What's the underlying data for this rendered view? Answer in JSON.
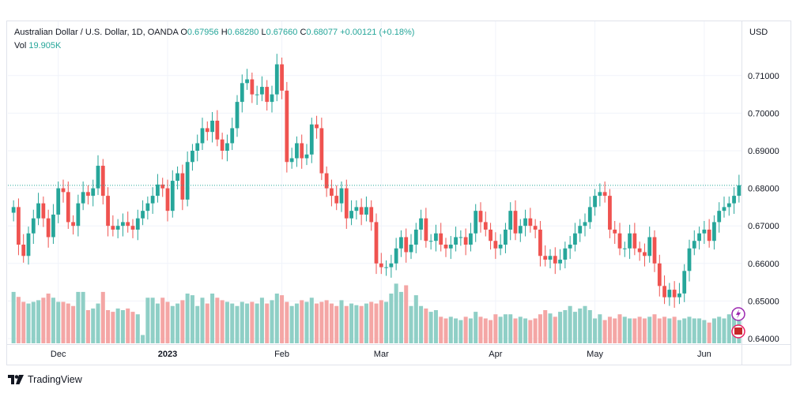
{
  "legend": {
    "symbol": "Australian Dollar / U.S. Dollar, 1D, OANDA",
    "o_label": "O",
    "o_value": "0.67956",
    "h_label": "H",
    "h_value": "0.68280",
    "l_label": "L",
    "l_value": "0.67660",
    "c_label": "C",
    "c_value": "0.68077",
    "change": "+0.00121 (+0.18%)",
    "vol_label": "Vol",
    "vol_value": "19.905K"
  },
  "axis_currency": "USD",
  "footer": {
    "brand": "TradingView"
  },
  "colors": {
    "up": "#26a69a",
    "down": "#ef5350",
    "vol_up": "#8fcfc6",
    "vol_down": "#f4a6a5",
    "grid": "#f0f3fa",
    "price_line": "#26a69a"
  },
  "chart_data": {
    "type": "candlestick",
    "title": "Australian Dollar / U.S. Dollar, 1D, OANDA",
    "y_ticks": [
      "0.64000",
      "0.65000",
      "0.66000",
      "0.67000",
      "0.68000",
      "0.69000",
      "0.70000",
      "0.71000"
    ],
    "ylim": [
      0.64,
      0.715
    ],
    "x_ticks": [
      {
        "label": "Dec",
        "bar": 9,
        "bold": false
      },
      {
        "label": "2023",
        "bar": 31,
        "bold": true
      },
      {
        "label": "Feb",
        "bar": 54,
        "bold": false
      },
      {
        "label": "Mar",
        "bar": 74,
        "bold": false
      },
      {
        "label": "Apr",
        "bar": 97,
        "bold": false
      },
      {
        "label": "May",
        "bar": 117,
        "bold": false
      },
      {
        "label": "Jun",
        "bar": 139,
        "bold": false
      }
    ],
    "last_close": 0.68077,
    "close": [
      0.675,
      0.665,
      0.662,
      0.668,
      0.672,
      0.676,
      0.672,
      0.667,
      0.673,
      0.68,
      0.679,
      0.671,
      0.67,
      0.676,
      0.679,
      0.678,
      0.68,
      0.686,
      0.678,
      0.67,
      0.669,
      0.67,
      0.671,
      0.67,
      0.669,
      0.672,
      0.674,
      0.676,
      0.678,
      0.681,
      0.68,
      0.674,
      0.682,
      0.684,
      0.677,
      0.687,
      0.69,
      0.692,
      0.696,
      0.695,
      0.698,
      0.693,
      0.69,
      0.692,
      0.696,
      0.703,
      0.708,
      0.709,
      0.705,
      0.705,
      0.707,
      0.703,
      0.705,
      0.713,
      0.706,
      0.687,
      0.688,
      0.692,
      0.688,
      0.689,
      0.697,
      0.696,
      0.684,
      0.68,
      0.678,
      0.676,
      0.68,
      0.672,
      0.674,
      0.675,
      0.673,
      0.675,
      0.671,
      0.66,
      0.659,
      0.659,
      0.66,
      0.664,
      0.667,
      0.663,
      0.665,
      0.669,
      0.672,
      0.666,
      0.666,
      0.668,
      0.665,
      0.664,
      0.665,
      0.667,
      0.667,
      0.665,
      0.668,
      0.674,
      0.671,
      0.669,
      0.666,
      0.664,
      0.665,
      0.669,
      0.674,
      0.668,
      0.67,
      0.672,
      0.67,
      0.669,
      0.662,
      0.661,
      0.662,
      0.66,
      0.661,
      0.664,
      0.665,
      0.668,
      0.67,
      0.671,
      0.675,
      0.678,
      0.679,
      0.678,
      0.669,
      0.668,
      0.664,
      0.664,
      0.668,
      0.664,
      0.663,
      0.662,
      0.667,
      0.66,
      0.654,
      0.651,
      0.653,
      0.651,
      0.652,
      0.658,
      0.664,
      0.666,
      0.668,
      0.669,
      0.666,
      0.671,
      0.674,
      0.675,
      0.676,
      0.678,
      0.6808
    ],
    "volume": [
      0.62,
      0.56,
      0.5,
      0.48,
      0.5,
      0.52,
      0.55,
      0.6,
      0.55,
      0.5,
      0.5,
      0.48,
      0.45,
      0.62,
      0.62,
      0.4,
      0.42,
      0.48,
      0.62,
      0.4,
      0.38,
      0.42,
      0.4,
      0.42,
      0.38,
      0.35,
      0.1,
      0.55,
      0.55,
      0.48,
      0.55,
      0.5,
      0.45,
      0.48,
      0.52,
      0.6,
      0.58,
      0.45,
      0.55,
      0.48,
      0.6,
      0.55,
      0.52,
      0.5,
      0.48,
      0.45,
      0.5,
      0.48,
      0.5,
      0.48,
      0.55,
      0.48,
      0.52,
      0.6,
      0.58,
      0.5,
      0.45,
      0.48,
      0.52,
      0.5,
      0.55,
      0.48,
      0.5,
      0.52,
      0.48,
      0.45,
      0.52,
      0.45,
      0.48,
      0.46,
      0.45,
      0.48,
      0.5,
      0.48,
      0.52,
      0.5,
      0.6,
      0.72,
      0.62,
      0.7,
      0.45,
      0.58,
      0.45,
      0.42,
      0.38,
      0.4,
      0.32,
      0.3,
      0.32,
      0.3,
      0.28,
      0.32,
      0.3,
      0.38,
      0.32,
      0.3,
      0.28,
      0.35,
      0.32,
      0.35,
      0.35,
      0.3,
      0.32,
      0.3,
      0.28,
      0.3,
      0.35,
      0.4,
      0.36,
      0.32,
      0.38,
      0.4,
      0.45,
      0.38,
      0.42,
      0.45,
      0.4,
      0.3,
      0.35,
      0.28,
      0.32,
      0.3,
      0.35,
      0.32,
      0.3,
      0.3,
      0.32,
      0.3,
      0.32,
      0.35,
      0.3,
      0.32,
      0.3,
      0.32,
      0.28,
      0.3,
      0.32,
      0.3,
      0.3,
      0.28,
      0.25,
      0.3,
      0.32,
      0.3,
      0.35,
      0.4,
      0.32
    ]
  }
}
